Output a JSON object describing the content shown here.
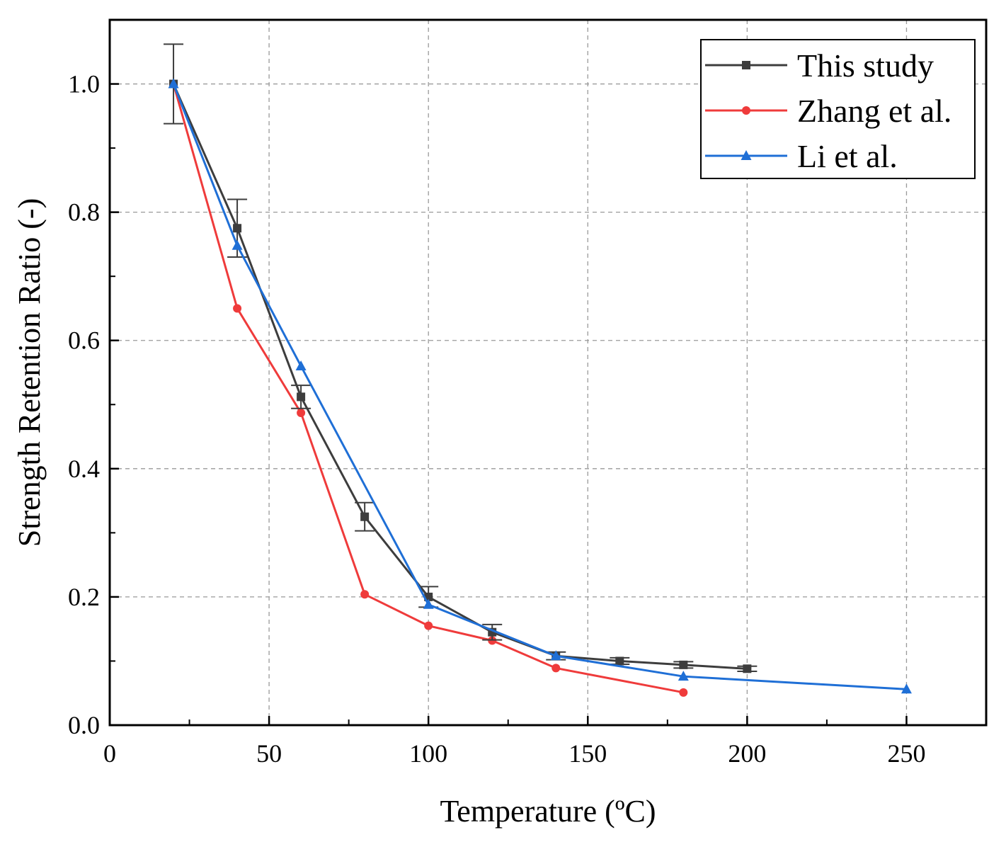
{
  "chart_data": {
    "type": "line",
    "title": "",
    "xlabel": "Temperature (ºC)",
    "ylabel": "Strength Retention Ratio (-)",
    "xlim": [
      0,
      275
    ],
    "ylim": [
      0,
      1.1
    ],
    "xticks": [
      0,
      50,
      100,
      150,
      200,
      250
    ],
    "xtick_labels": [
      "0",
      "50",
      "100",
      "150",
      "200",
      "250"
    ],
    "yticks": [
      0.0,
      0.2,
      0.4,
      0.6,
      0.8,
      1.0
    ],
    "ytick_labels": [
      "0.0",
      "0.2",
      "0.4",
      "0.6",
      "0.8",
      "1.0"
    ],
    "grid": true,
    "legend_position": "top-right",
    "series": [
      {
        "name": "This study",
        "color": "#3d3d3d",
        "marker": "square",
        "x": [
          20,
          40,
          60,
          80,
          100,
          120,
          140,
          160,
          180,
          200
        ],
        "y": [
          1.0,
          0.775,
          0.512,
          0.325,
          0.2,
          0.145,
          0.108,
          0.1,
          0.094,
          0.088
        ],
        "error": [
          0.062,
          0.045,
          0.018,
          0.022,
          0.016,
          0.012,
          0.006,
          0.005,
          0.005,
          0.004
        ]
      },
      {
        "name": "Zhang et al.",
        "color": "#ef3b3b",
        "marker": "circle",
        "x": [
          20,
          40,
          60,
          80,
          100,
          120,
          140,
          180
        ],
        "y": [
          1.0,
          0.65,
          0.487,
          0.204,
          0.155,
          0.132,
          0.089,
          0.051
        ]
      },
      {
        "name": "Li et al.",
        "color": "#1f6fd6",
        "marker": "triangle",
        "x": [
          20,
          40,
          60,
          100,
          140,
          180,
          250
        ],
        "y": [
          1.0,
          0.748,
          0.56,
          0.188,
          0.108,
          0.076,
          0.056
        ]
      }
    ]
  }
}
